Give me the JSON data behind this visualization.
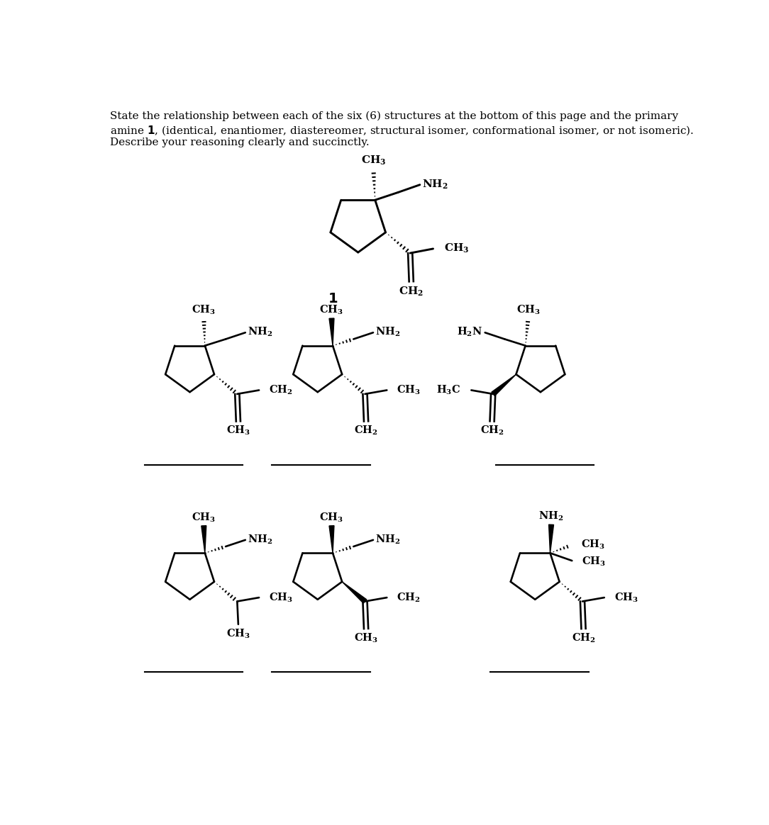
{
  "figsize": [
    10.84,
    11.64
  ],
  "dpi": 100,
  "background_color": "#ffffff",
  "title_lines": [
    "State the relationship between each of the six (6) structures at the bottom of this page and the primary",
    "amine \\textbf{1}, (identical, enantiomer, diastereomer, structural isomer, conformational isomer, or not isomeric).",
    "Describe your reasoning clearly and succinctly."
  ]
}
